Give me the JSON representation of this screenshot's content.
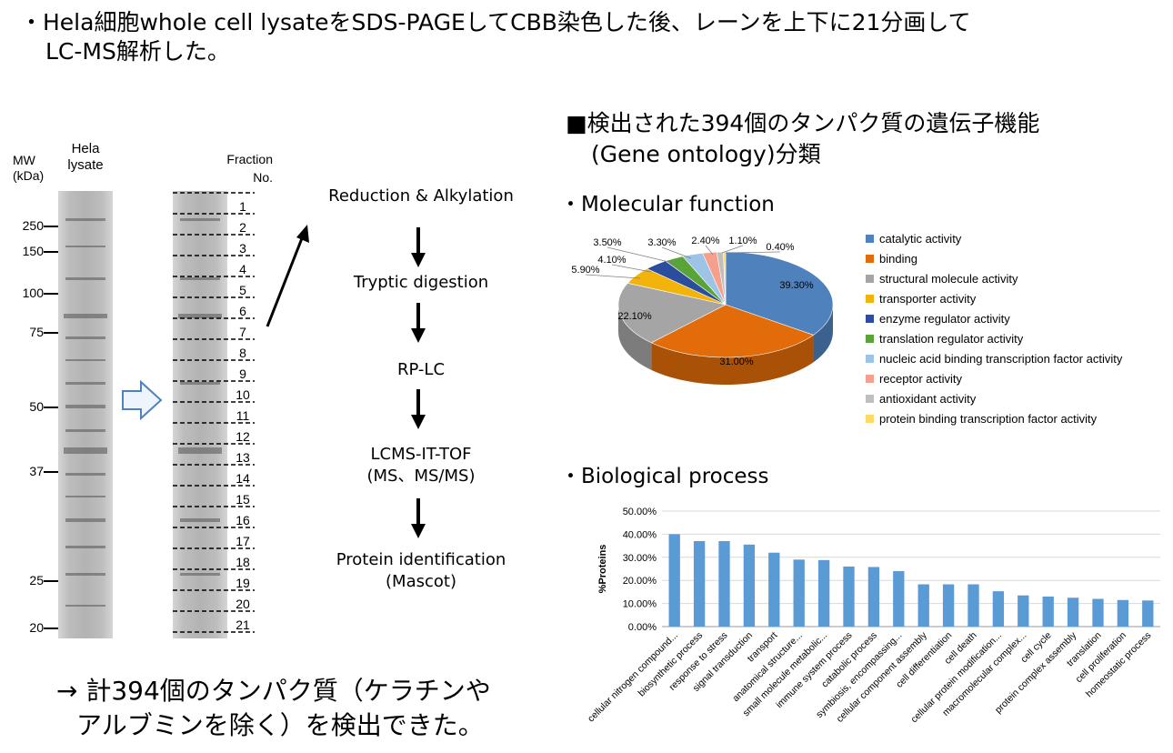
{
  "intro": {
    "line1": "・Hela細胞whole cell lysateをSDS-PAGEしてCBB染色した後、レーンを上下に21分画して",
    "line2": "LC-MS解析した。"
  },
  "gel": {
    "mw_header": "MW\n(kDa)",
    "lane_header": "Hela\nlysate",
    "fraction_header": "Fraction\nNo.",
    "markers": [
      "250",
      "150",
      "100",
      "75",
      "50",
      "37",
      "25",
      "20"
    ],
    "fractions": [
      "1",
      "2",
      "3",
      "4",
      "5",
      "6",
      "7",
      "8",
      "9",
      "10",
      "11",
      "12",
      "13",
      "14",
      "15",
      "16",
      "17",
      "18",
      "19",
      "20",
      "21"
    ]
  },
  "workflow": {
    "steps": [
      "Reduction & Alkylation",
      "Tryptic digestion",
      "RP-LC",
      "LCMS-IT-TOF\n(MS、MS/MS)",
      "Protein identification\n(Mascot)"
    ]
  },
  "result": {
    "text1": "→ 計394個のタンパク質（ケラチンや",
    "text2": "アルブミンを除く）を検出できた。"
  },
  "go_section": {
    "title1": "■検出された394個のタンパク質の遺伝子機能",
    "title2": "(Gene ontology)分類",
    "mf_title": "・Molecular function",
    "bp_title": "・Biological process"
  },
  "colors": {
    "catalytic": "#4f81bd",
    "binding": "#e36c0a",
    "structural": "#a5a5a5",
    "transporter": "#f2b40a",
    "enzyme_regulator": "#2c4d9e",
    "translation_regulator": "#5aa339",
    "nucleic_acid": "#9dc3e6",
    "receptor": "#f4a08c",
    "antioxidant": "#bfbfbf",
    "protein_binding_tf": "#ffd966",
    "bar": "#5b9bd5"
  },
  "chart_data": [
    {
      "type": "pie",
      "title": "",
      "categories": [
        "catalytic activity",
        "binding",
        "structural molecule activity",
        "transporter activity",
        "enzyme regulator activity",
        "translation regulator activity",
        "nucleic acid binding transcription factor activity",
        "receptor activity",
        "antioxidant activity",
        "protein binding transcription factor activity"
      ],
      "values": [
        39.3,
        31.0,
        22.1,
        5.9,
        4.1,
        3.3,
        3.5,
        2.4,
        1.1,
        0.4
      ],
      "data_labels": [
        "39.30%",
        "31.00%",
        "22.10%",
        "5.90%",
        "4.10%",
        "3.30%",
        "3.50%",
        "2.40%",
        "1.10%",
        "0.40%"
      ],
      "legend": "right"
    },
    {
      "type": "bar",
      "title": "",
      "ylabel": "%Proteins",
      "xlabel": "",
      "ylim": [
        0,
        50
      ],
      "yticks": [
        "0.00%",
        "10.00%",
        "20.00%",
        "30.00%",
        "40.00%",
        "50.00%"
      ],
      "categories": [
        "cellular nitrogen compound...",
        "biosynthetic process",
        "response to stress",
        "signal transduction",
        "transport",
        "anatomical structure...",
        "small molecule metabolic...",
        "immune system process",
        "catabolic process",
        "symbiosis, encompassing...",
        "cellular component assembly",
        "cell differentiation",
        "cell death",
        "cellular protein modification...",
        "macromolecular complex...",
        "cell cycle",
        "protein complex assembly",
        "translation",
        "cell proliferation",
        "homeostatic process"
      ],
      "values": [
        40,
        37,
        37,
        35.5,
        32,
        29,
        28.8,
        26,
        25.8,
        24,
        18.3,
        18.3,
        18.3,
        15.3,
        13.5,
        13,
        12.5,
        12,
        11.5,
        11.3
      ],
      "grid": true
    }
  ]
}
